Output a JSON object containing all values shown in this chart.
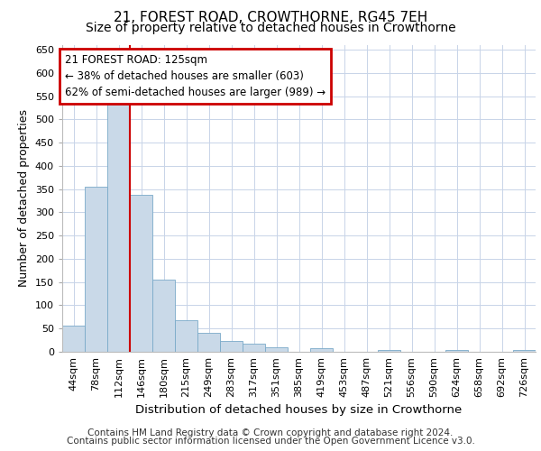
{
  "title_line1": "21, FOREST ROAD, CROWTHORNE, RG45 7EH",
  "title_line2": "Size of property relative to detached houses in Crowthorne",
  "xlabel": "Distribution of detached houses by size in Crowthorne",
  "ylabel": "Number of detached properties",
  "footer_line1": "Contains HM Land Registry data © Crown copyright and database right 2024.",
  "footer_line2": "Contains public sector information licensed under the Open Government Licence v3.0.",
  "bar_labels": [
    "44sqm",
    "78sqm",
    "112sqm",
    "146sqm",
    "180sqm",
    "215sqm",
    "249sqm",
    "283sqm",
    "317sqm",
    "351sqm",
    "385sqm",
    "419sqm",
    "453sqm",
    "487sqm",
    "521sqm",
    "556sqm",
    "590sqm",
    "624sqm",
    "658sqm",
    "692sqm",
    "726sqm"
  ],
  "bar_heights": [
    57,
    355,
    540,
    337,
    155,
    68,
    41,
    23,
    17,
    10,
    0,
    8,
    0,
    0,
    3,
    0,
    0,
    3,
    0,
    0,
    3
  ],
  "bar_color": "#c9d9e8",
  "bar_edgecolor": "#7aaac8",
  "property_line_x": 2.5,
  "property_line_color": "#cc0000",
  "annotation_line1": "21 FOREST ROAD: 125sqm",
  "annotation_line2": "← 38% of detached houses are smaller (603)",
  "annotation_line3": "62% of semi-detached houses are larger (989) →",
  "annotation_box_color": "#cc0000",
  "ylim": [
    0,
    660
  ],
  "yticks": [
    0,
    50,
    100,
    150,
    200,
    250,
    300,
    350,
    400,
    450,
    500,
    550,
    600,
    650
  ],
  "grid_color": "#c8d4e8",
  "background_color": "#ffffff",
  "title_fontsize": 11,
  "subtitle_fontsize": 10,
  "axis_label_fontsize": 9,
  "tick_fontsize": 8,
  "footer_fontsize": 7.5,
  "ann_fontsize": 8.5
}
